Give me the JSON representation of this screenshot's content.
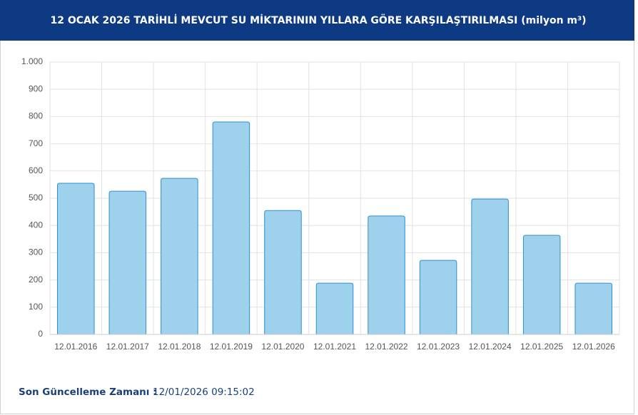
{
  "chart_data": {
    "type": "bar",
    "title": "12 OCAK 2026 TARİHLİ MEVCUT SU MİKTARININ YILLARA GÖRE KARŞILAŞTIRILMASI (milyon m³)",
    "categories": [
      "12.01.2016",
      "12.01.2017",
      "12.01.2018",
      "12.01.2019",
      "12.01.2020",
      "12.01.2021",
      "12.01.2022",
      "12.01.2023",
      "12.01.2024",
      "12.01.2025",
      "12.01.2026"
    ],
    "values": [
      555,
      526,
      573,
      780,
      455,
      188,
      435,
      272,
      497,
      364,
      188
    ],
    "color": "#9dd1ec",
    "ylim": [
      0,
      1000
    ],
    "yticks": [
      0,
      100,
      200,
      300,
      400,
      500,
      600,
      700,
      800,
      900,
      {
        "value": 1000,
        "label": "1.000"
      }
    ],
    "grid": true
  },
  "footer": {
    "label": "Son Güncelleme Zamanı :",
    "time": "12/01/2026 09:15:02"
  }
}
